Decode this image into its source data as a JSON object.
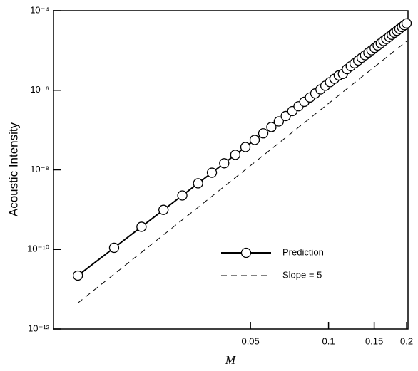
{
  "chart_data": {
    "type": "line",
    "xlabel": "M",
    "ylabel": "Acoustic Intensity",
    "xscale": "log",
    "yscale": "log",
    "xlim": [
      0.0087,
      0.2025
    ],
    "ylim": [
      1e-12,
      0.0001
    ],
    "xticks": [
      0.05,
      0.1,
      0.15,
      0.2
    ],
    "yticks": [
      {
        "value": 1e-12,
        "label": "10⁻¹²"
      },
      {
        "value": 1e-10,
        "label": "10⁻¹⁰"
      },
      {
        "value": 1e-08,
        "label": "10⁻⁸"
      },
      {
        "value": 1e-06,
        "label": "10⁻⁶"
      },
      {
        "value": 0.0001,
        "label": "10⁻⁴"
      }
    ],
    "legend": "lower right",
    "series": [
      {
        "name": "Prediction",
        "color": "#000000",
        "style": "solid-marker",
        "x": [
          0.0108,
          0.0149,
          0.019,
          0.0231,
          0.0273,
          0.0314,
          0.0355,
          0.0396,
          0.0437,
          0.0478,
          0.0519,
          0.056,
          0.0602,
          0.0643,
          0.0684,
          0.0725,
          0.0766,
          0.0807,
          0.0848,
          0.0889,
          0.0931,
          0.0972,
          0.1013,
          0.1054,
          0.1095,
          0.1136,
          0.1177,
          0.1218,
          0.126,
          0.1301,
          0.1342,
          0.1383,
          0.1424,
          0.1465,
          0.1506,
          0.1547,
          0.1589,
          0.163,
          0.1671,
          0.1712,
          0.1753,
          0.1794,
          0.1835,
          0.1876,
          0.1918,
          0.1959,
          0.2
        ],
        "values": [
          2.2e-11,
          1.1e-10,
          3.71e-10,
          9.87e-10,
          2.27e-09,
          4.58e-09,
          8.46e-09,
          1.46e-08,
          2.39e-08,
          3.74e-08,
          5.65e-08,
          8.26e-08,
          1.19e-07,
          1.65e-07,
          2.25e-07,
          3e-07,
          3.96e-07,
          5.13e-07,
          6.58e-07,
          8.33e-07,
          1.05e-06,
          1.3e-06,
          1.6e-06,
          1.95e-06,
          2.36e-06,
          2.57e-06,
          3.39e-06,
          4.02e-06,
          4.76e-06,
          5.59e-06,
          6.53e-06,
          7.59e-06,
          8.78e-06,
          1.01e-05,
          1.16e-05,
          1.33e-05,
          1.52e-05,
          1.73e-05,
          1.95e-05,
          2.21e-05,
          2.48e-05,
          2.79e-05,
          3.12e-05,
          3.49e-05,
          3.89e-05,
          4.33e-05,
          4.8e-05
        ]
      },
      {
        "name": "Slope = 5",
        "color": "#000000",
        "style": "dashed",
        "x": [
          0.0108,
          0.2
        ],
        "values": [
          4.5e-12,
          1.7e-05
        ]
      }
    ]
  }
}
